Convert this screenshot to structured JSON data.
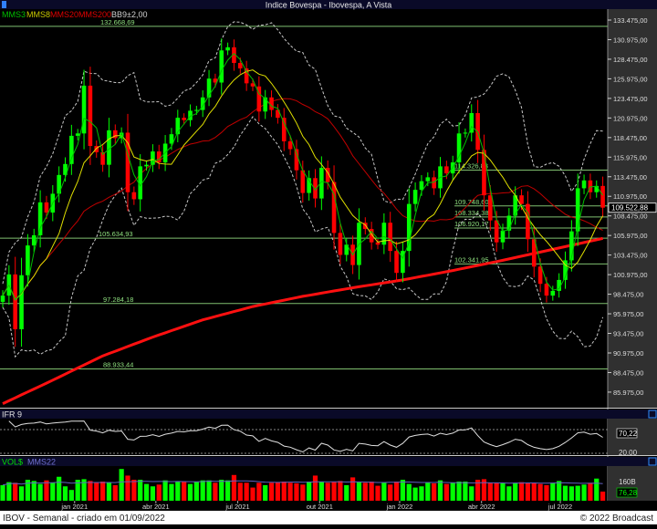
{
  "window": {
    "title": "Indice Bovespa - Ibovespa, A Vista"
  },
  "legend": {
    "mms3": "MMS3",
    "mms8": "MMS8",
    "mms20": "MMS20",
    "mms200": "MMS200",
    "bb": "BB9±2,00"
  },
  "colors": {
    "up": "#00ff00",
    "down": "#ff0000",
    "mms3": "#00c000",
    "mms8": "#e0e000",
    "mms20": "#c00000",
    "mms200": "#ff1010",
    "bands": "#c8c8c8",
    "levels": "#7fbf6f",
    "level_text": "#8fe07f",
    "volavg": "#6060c0"
  },
  "chart_data": [
    {
      "type": "candlestick",
      "title": "Indice Bovespa - Ibovespa, A Vista",
      "period": "weekly",
      "x_tick_labels": [
        "jan 2021",
        "abr 2021",
        "jul 2021",
        "out 2021",
        "jan 2022",
        "abr 2022",
        "jul 2022"
      ],
      "x_tick_weeks": [
        11.5,
        24.5,
        37.6,
        50.7,
        63.5,
        76.6,
        89.2
      ],
      "y_tick_labels": [
        "133.475,00",
        "130.975,00",
        "128.475,00",
        "125.975,00",
        "123.475,00",
        "120.975,00",
        "118.475,00",
        "115.975,00",
        "113.475,00",
        "110.975,00",
        "108.475,00",
        "105.975,00",
        "103.475,00",
        "100.975,00",
        "98.475,00",
        "95.975,00",
        "93.475,00",
        "90.975,00",
        "88.475,00",
        "85.975,00"
      ],
      "ylim": [
        84500,
        134500
      ],
      "last_price_label": "109.522,88",
      "last_price": 109522.88,
      "close": [
        98300,
        101000,
        94000,
        100900,
        104700,
        106000,
        110200,
        108900,
        111300,
        113700,
        115100,
        118700,
        119000,
        125100,
        117400,
        116600,
        115000,
        119400,
        118400,
        119100,
        111500,
        110600,
        114800,
        115000,
        116700,
        115300,
        117700,
        118900,
        121000,
        120700,
        121900,
        122000,
        123600,
        126000,
        125500,
        129600,
        130000,
        128000,
        127300,
        125400,
        125000,
        121800,
        123600,
        122000,
        121000,
        118000,
        117000,
        114300,
        111400,
        113300,
        110700,
        114600,
        112800,
        106300,
        103500,
        104800,
        102200,
        107600,
        106800,
        105100,
        104800,
        107600,
        104000,
        101200,
        104000,
        110000,
        111800,
        112900,
        113400,
        112000,
        114800,
        113900,
        115300,
        119000,
        119100,
        121600,
        116900,
        111100,
        107900,
        105100,
        106600,
        108500,
        111100,
        110000,
        105500,
        102000,
        99800,
        98300,
        98900,
        100300,
        102800,
        106500,
        112000,
        113000,
        111500,
        112300,
        109522.88
      ],
      "mms200_samples_every_8_weeks": [
        84500,
        87500,
        90600,
        93000,
        95200,
        96900,
        98200,
        99300,
        100300,
        101500,
        102800,
        104200,
        105600
      ],
      "levels": [
        {
          "value": 132668.69,
          "label": "132.668,69"
        },
        {
          "value": 114326.83,
          "label": "114.326,83"
        },
        {
          "value": 109748.6,
          "label": "109.748,60"
        },
        {
          "value": 108334.38,
          "label": "108.334,38"
        },
        {
          "value": 106920.17,
          "label": "106.920,17"
        },
        {
          "value": 105634.93,
          "label": "105.634,93"
        },
        {
          "value": 102341.95,
          "label": "102.341,95"
        },
        {
          "value": 97284.18,
          "label": "97.284,18"
        },
        {
          "value": 88933.44,
          "label": "88.933,44"
        }
      ]
    },
    {
      "type": "line",
      "title": "IFR 9",
      "ylim": [
        15,
        90
      ],
      "reference_lines": [
        70,
        20
      ],
      "y_tick_labels": [
        "70,22",
        "20,00"
      ],
      "last_value": 70.22
    },
    {
      "type": "bar",
      "title": "VOL$",
      "series_avg": "MMS22",
      "unit": "B",
      "y_tick_labels": [
        "160B",
        "76,28"
      ],
      "last_value": 76.28,
      "values": [
        130,
        155,
        150,
        120,
        175,
        165,
        140,
        170,
        150,
        200,
        120,
        90,
        175,
        180,
        165,
        150,
        160,
        150,
        130,
        265,
        210,
        175,
        175,
        140,
        120,
        135,
        170,
        140,
        160,
        160,
        140,
        160,
        170,
        170,
        150,
        175,
        170,
        215,
        150,
        150,
        110,
        150,
        130,
        150,
        155,
        160,
        150,
        145,
        135,
        160,
        210,
        160,
        150,
        160,
        165,
        130,
        195,
        155,
        150,
        160,
        125,
        155,
        135,
        160,
        175,
        140,
        110,
        120,
        150,
        145,
        170,
        140,
        150,
        160,
        160,
        120,
        175,
        180,
        150,
        150,
        145,
        120,
        150,
        155,
        150,
        150,
        140,
        130,
        150,
        165,
        125,
        120,
        125,
        135,
        150,
        185,
        76.28
      ]
    }
  ],
  "footer": {
    "left": "IBOV - Semanal - criado em 01/09/2022",
    "right": "© 2022 Broadcast"
  }
}
